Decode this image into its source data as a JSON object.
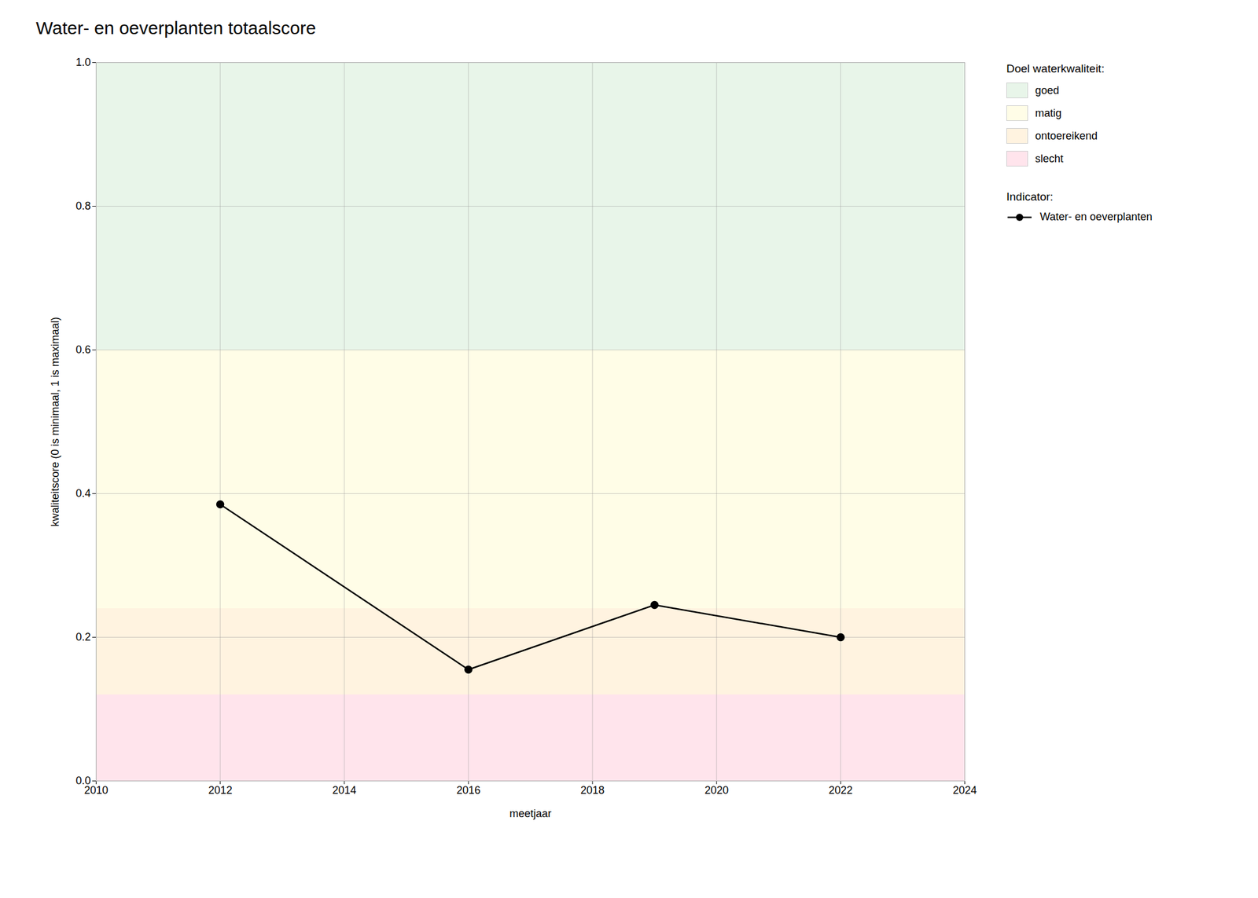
{
  "chart_data": {
    "type": "line",
    "title": "Water- en oeverplanten totaalscore",
    "xlabel": "meetjaar",
    "ylabel": "kwaliteitscore (0 is minimaal, 1 is maximaal)",
    "x": [
      2012,
      2016,
      2019,
      2022
    ],
    "series": [
      {
        "name": "Water- en oeverplanten",
        "color": "#000000",
        "marker": "circle",
        "line_style": "solid",
        "values": [
          0.385,
          0.155,
          0.245,
          0.2
        ]
      }
    ],
    "xlim": [
      2010,
      2024
    ],
    "ylim": [
      0,
      1.0
    ],
    "xticks": [
      2010,
      2012,
      2014,
      2016,
      2018,
      2020,
      2022,
      2024
    ],
    "yticks": [
      {
        "value": 0.0,
        "label": "0.0"
      },
      0.2,
      0.4,
      0.6,
      0.8,
      {
        "value": 1.0,
        "label": "1.0"
      }
    ],
    "grid": true,
    "bands_title": "Doel waterkwaliteit:",
    "series_legend_title": "Indicator:",
    "bands": [
      {
        "ymin": 0.0,
        "ymax": 0.12,
        "color": "#FFE4EC",
        "label": "slecht"
      },
      {
        "ymin": 0.12,
        "ymax": 0.24,
        "color": "#FFF3E0",
        "label": "ontoereikend"
      },
      {
        "ymin": 0.24,
        "ymax": 0.6,
        "color": "#FFFDE7",
        "label": "matig"
      },
      {
        "ymin": 0.6,
        "ymax": 1.0,
        "color": "#E8F5E9",
        "label": "goed"
      }
    ]
  }
}
